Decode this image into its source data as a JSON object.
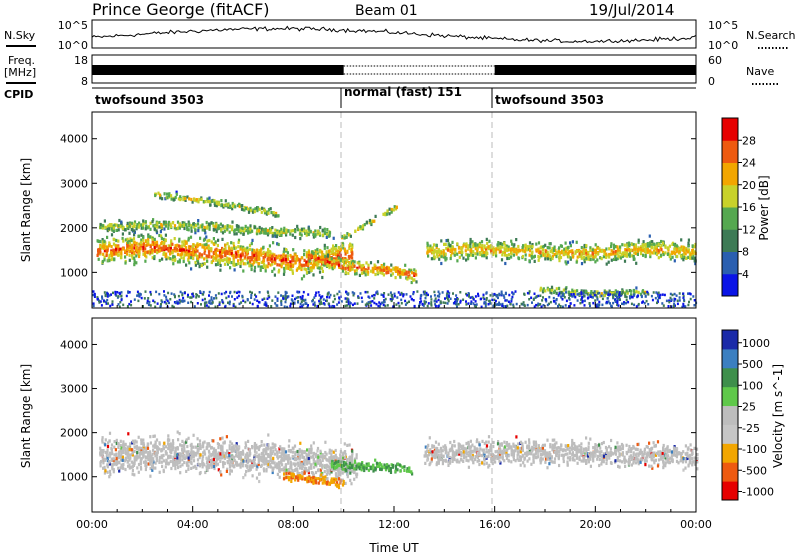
{
  "header": {
    "station": "Prince George (fitACF)",
    "beam": "Beam 01",
    "date": "19/Jul/2014"
  },
  "noise_panel": {
    "left_label": "N.Sky",
    "right_label": "N.Search",
    "left_ticks": [
      "10^5",
      "10^0"
    ],
    "right_ticks": [
      "10^5",
      "10^0"
    ]
  },
  "freq_panel": {
    "label_line1": "Freq.",
    "label_line2": "[MHz]",
    "left_ticks": [
      "18",
      "8"
    ],
    "right_ticks": [
      "60",
      "0"
    ],
    "right_label": "Nave"
  },
  "cpid": {
    "label": "CPID",
    "segments": [
      {
        "name": "twofsound 3503",
        "start_hour": 0,
        "end_hour": 10
      },
      {
        "name": "normal (fast) 151",
        "start_hour": 10,
        "end_hour": 16
      },
      {
        "name": "twofsound 3503",
        "start_hour": 16,
        "end_hour": 24
      }
    ]
  },
  "colors": {
    "power_scale": [
      "#0a14e6",
      "#2a5fb0",
      "#3d7a55",
      "#55a850",
      "#c8d22a",
      "#f2a600",
      "#ee5a10",
      "#e60000"
    ],
    "velocity_scale": [
      "#e60000",
      "#ee5a10",
      "#f2a600",
      "#c6c6c6",
      "#bdbdbd",
      "#5fc84a",
      "#3e8f4b",
      "#3b7fc0",
      "#1a2aa8"
    ],
    "ground_scatter": "#bdbdbd"
  },
  "chart_data": [
    {
      "type": "heatmap",
      "title": "",
      "ylabel": "Slant Range [km]",
      "xlabel": "",
      "xlim": [
        0,
        24
      ],
      "ylim": [
        200,
        4600
      ],
      "yticks": [
        1000,
        2000,
        3000,
        4000
      ],
      "colorbar": {
        "label": "Power [dB]",
        "ticks": [
          4,
          8,
          12,
          16,
          20,
          24,
          28
        ],
        "range": [
          0,
          32
        ]
      },
      "bands": [
        {
          "from_hour": 0.2,
          "to_hour": 10.3,
          "center_km": [
            1500,
            1600,
            1500,
            1400,
            1250,
            1450
          ],
          "width_km": 900,
          "peak_db": 28
        },
        {
          "from_hour": 0.3,
          "to_hour": 9.4,
          "center_km": [
            2050,
            2100,
            2050,
            1950,
            1900
          ],
          "width_km": 350,
          "peak_db": 20
        },
        {
          "from_hour": 2.4,
          "to_hour": 7.4,
          "center_km": [
            2800,
            2600,
            2350
          ],
          "width_km": 250,
          "peak_db": 16
        },
        {
          "from_hour": 8.6,
          "to_hour": 12.9,
          "center_km": [
            1400,
            1150,
            1100,
            950
          ],
          "width_km": 450,
          "peak_db": 26
        },
        {
          "from_hour": 9.9,
          "to_hour": 12.1,
          "center_km": [
            1800,
            2500
          ],
          "width_km": 180,
          "peak_db": 22
        },
        {
          "from_hour": 13.3,
          "to_hour": 24,
          "center_km": [
            1500,
            1550,
            1500,
            1450,
            1550,
            1500
          ],
          "width_km": 650,
          "peak_db": 24
        },
        {
          "from_hour": 17.8,
          "to_hour": 22.0,
          "center_km": [
            650,
            550,
            600
          ],
          "width_km": 250,
          "peak_db": 18
        }
      ]
    },
    {
      "type": "heatmap",
      "title": "",
      "ylabel": "Slant Range [km]",
      "xlabel": "Time UT",
      "xlim": [
        0,
        24
      ],
      "ylim": [
        200,
        4600
      ],
      "yticks": [
        1000,
        2000,
        3000,
        4000
      ],
      "xticks": [
        "00:00",
        "04:00",
        "08:00",
        "12:00",
        "16:00",
        "20:00",
        "00:00"
      ],
      "colorbar": {
        "label": "Velocity [m s^-1]",
        "ticks": [
          "1000",
          "500",
          "100",
          "25",
          "-25",
          "-100",
          "-500",
          "-1000"
        ]
      },
      "regions": [
        {
          "from_hour": 0.3,
          "to_hour": 10.5,
          "center_km": [
            1500,
            1550,
            1500,
            1400,
            1300
          ],
          "width_km": 1150,
          "velocity_class": "ground"
        },
        {
          "from_hour": 13.2,
          "to_hour": 24,
          "center_km": [
            1550,
            1600,
            1550,
            1500
          ],
          "width_km": 800,
          "velocity_class": "ground"
        },
        {
          "from_hour": 9.5,
          "to_hour": 12.7,
          "center_km": [
            1300,
            1200
          ],
          "width_km": 350,
          "velocity_class": "positive_slow"
        },
        {
          "from_hour": 7.6,
          "to_hour": 10.0,
          "center_km": [
            1050,
            900
          ],
          "width_km": 300,
          "velocity_class": "negative_slow"
        }
      ]
    }
  ]
}
